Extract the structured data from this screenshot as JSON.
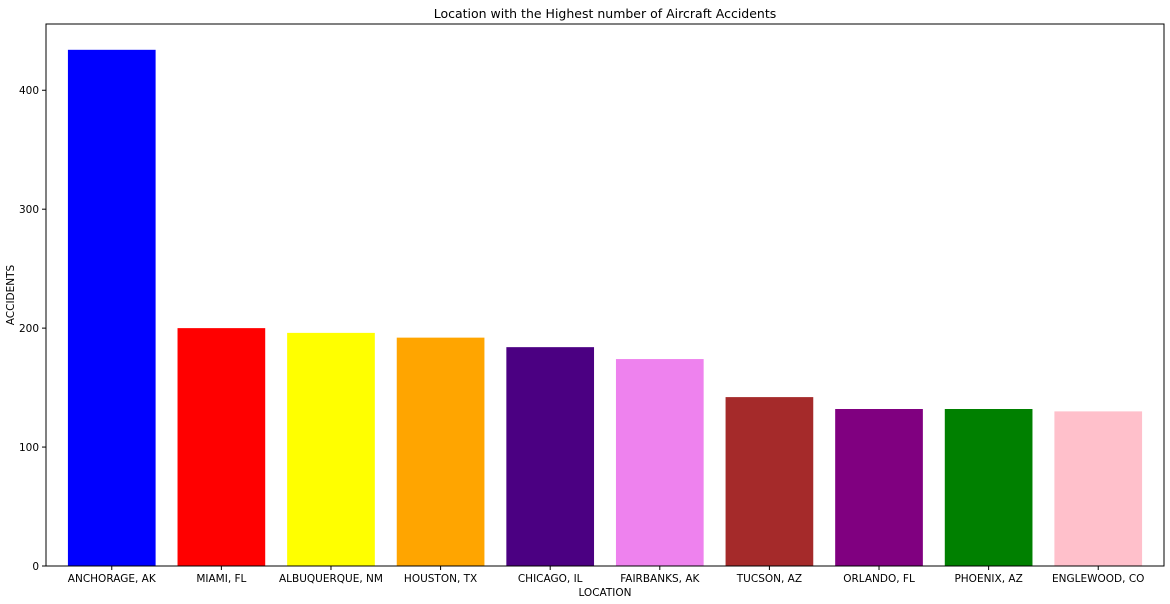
{
  "chart_data": {
    "type": "bar",
    "title": "Location with the Highest number of Aircraft Accidents",
    "xlabel": "LOCATION",
    "ylabel": "ACCIDENTS",
    "categories": [
      "ANCHORAGE, AK",
      "MIAMI, FL",
      "ALBUQUERQUE, NM",
      "HOUSTON, TX",
      "CHICAGO, IL",
      "FAIRBANKS, AK",
      "TUCSON, AZ",
      "ORLANDO, FL",
      "PHOENIX, AZ",
      "ENGLEWOOD, CO"
    ],
    "values": [
      434,
      200,
      196,
      192,
      184,
      174,
      142,
      132,
      132,
      130
    ],
    "colors": [
      "#0000ff",
      "#ff0000",
      "#ffff00",
      "#ffa500",
      "#4b0082",
      "#ee82ee",
      "#a52a2a",
      "#800080",
      "#008000",
      "#ffc0cb"
    ],
    "ylim": [
      0,
      455.7
    ],
    "yticks": [
      0,
      100,
      200,
      300,
      400
    ],
    "grid": false,
    "legend": false
  }
}
